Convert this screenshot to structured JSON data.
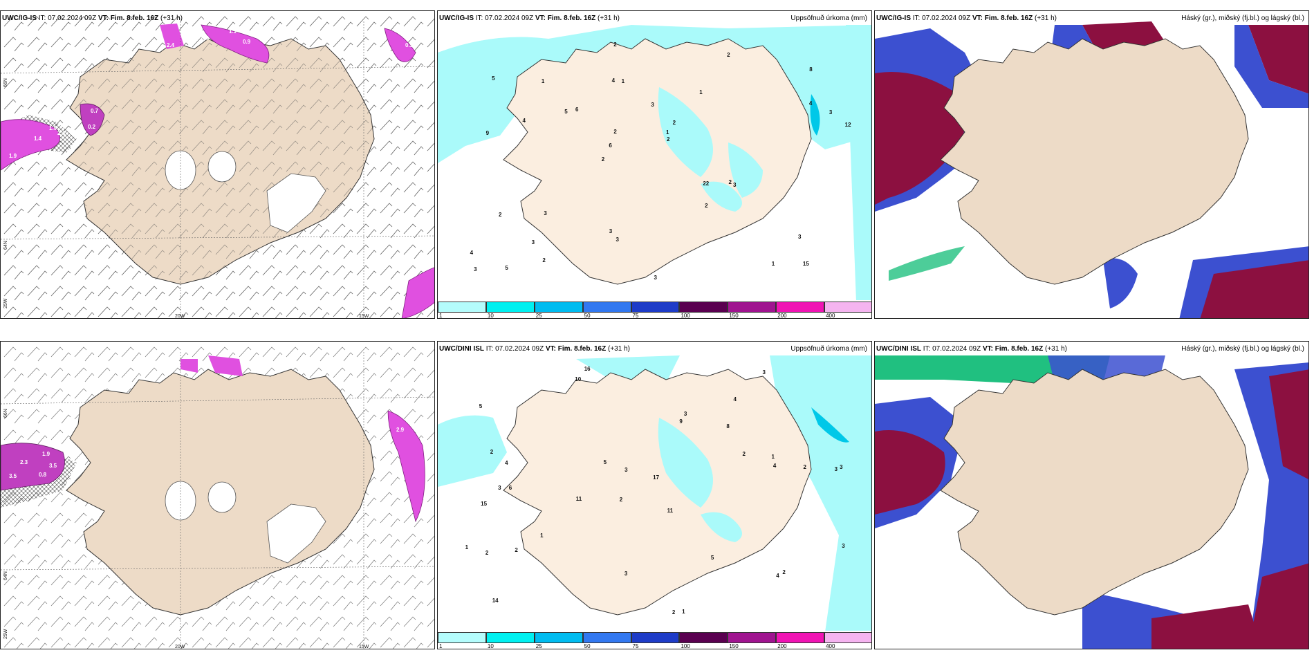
{
  "panels": [
    {
      "id": "p1",
      "model": "UWC/IG-IS",
      "it": "IT: 07.02.2024 09Z",
      "vt_label": "VT:",
      "vt": "Fim. 8.feb. 16Z",
      "lead": "(+31 h)",
      "right_title": "",
      "lat_labels": [
        "66N",
        "64N"
      ],
      "lon_labels": [
        "25W",
        "20W",
        "15W"
      ],
      "values": [
        "1.9",
        "1.4",
        "2.4",
        "0.7",
        "0.2",
        "1.9",
        "2.4",
        "0.6",
        "0.9",
        "1.1",
        "0.3"
      ]
    },
    {
      "id": "p2",
      "model": "UWC/IG-IS",
      "it": "IT: 07.02.2024 09Z",
      "vt_label": "VT:",
      "vt": "Fim. 8.feb. 16Z",
      "lead": "(+31 h)",
      "right_title": "Uppsöfnuð úrkoma (mm)",
      "numbers": [
        "15",
        "9",
        "8",
        "2",
        "1",
        "5",
        "4",
        "3",
        "2",
        "6",
        "4",
        "3",
        "1",
        "2",
        "3",
        "5",
        "2",
        "12",
        "22",
        "4",
        "6",
        "3",
        "2",
        "1",
        "2",
        "3",
        "1",
        "3",
        "2",
        "3",
        "5",
        "4",
        "2",
        "2",
        "3",
        "1",
        "3",
        "3",
        "2"
      ]
    },
    {
      "id": "p3",
      "model": "UWC/IG-IS",
      "it": "IT: 07.02.2024 09Z",
      "vt_label": "VT:",
      "vt": "Fim. 8.feb. 16Z",
      "lead": "(+31 h)",
      "right_title": "Háský (gr.), miðský (fj.bl.) og lágský (bl.)"
    },
    {
      "id": "p4",
      "model": "UWC/DINI ISL",
      "it": "IT: 07.02.2024 09Z",
      "vt_label": "VT:",
      "vt": "Fim. 8.feb. 16Z",
      "lead": "(+31 h)",
      "right_title": "",
      "lat_labels": [
        "66N",
        "64N"
      ],
      "lon_labels": [
        "25W",
        "20W",
        "15W"
      ],
      "values": [
        "3.5",
        "0.8",
        "1.9",
        "2.3",
        "3.5",
        "2.9"
      ]
    },
    {
      "id": "p5",
      "model": "UWC/DINI ISL",
      "it": "IT: 07.02.2024 09Z",
      "vt_label": "VT:",
      "vt": "Fim. 8.feb. 16Z",
      "lead": "(+31 h)",
      "right_title": "Uppsöfnuð úrkoma (mm)",
      "numbers": [
        "16",
        "4",
        "3",
        "2",
        "11",
        "6",
        "5",
        "8",
        "15",
        "9",
        "17",
        "14",
        "10",
        "11",
        "2",
        "1",
        "3",
        "3",
        "2",
        "1",
        "4",
        "3",
        "3",
        "2",
        "1",
        "2",
        "3",
        "4",
        "2",
        "2",
        "4",
        "3",
        "2",
        "5",
        "5",
        "3",
        "1"
      ]
    },
    {
      "id": "p6",
      "model": "UWC/DINI ISL",
      "it": "IT: 07.02.2024 09Z",
      "vt_label": "VT:",
      "vt": "Fim. 8.feb. 16Z",
      "lead": "(+31 h)",
      "right_title": "Háský (gr.), miðský (fj.bl.) og lágský (bl.)"
    }
  ],
  "precip_colorbar": {
    "ticks": [
      "1",
      "10",
      "25",
      "50",
      "75",
      "100",
      "150",
      "200",
      "400"
    ],
    "colors": [
      "#b4fcfc",
      "#00f0f0",
      "#00bcf0",
      "#3278f0",
      "#1e3cc8",
      "#5a0050",
      "#a01490",
      "#f014b4",
      "#f5b4f0"
    ]
  },
  "colors": {
    "land": "#eddbc7",
    "land_light": "#fbeee0",
    "precip_light": "#aafafa",
    "wind_magenta": "#e050e0",
    "cloud_high": "#20c080",
    "cloud_mid": "#3c50d0",
    "cloud_low": "#8c1040"
  }
}
